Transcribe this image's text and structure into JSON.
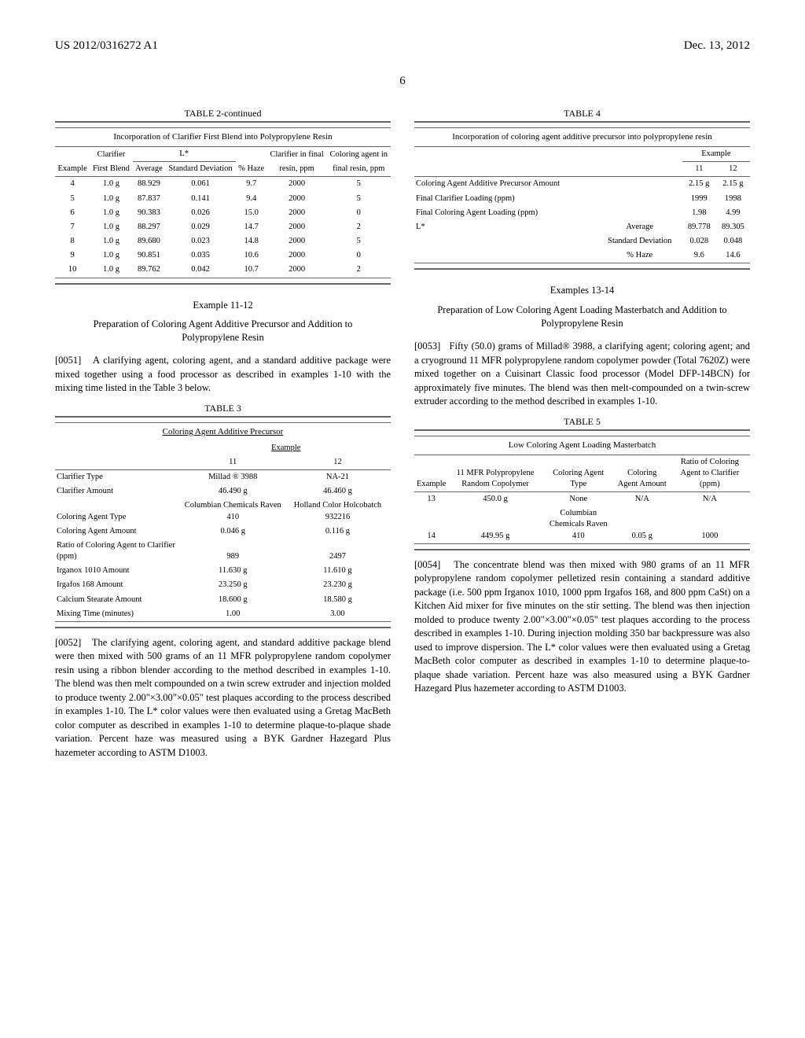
{
  "header": {
    "left": "US 2012/0316272 A1",
    "right": "Dec. 13, 2012"
  },
  "page_number": "6",
  "left": {
    "table2": {
      "caption": "TABLE 2-continued",
      "subtitle": "Incorporation of Clarifier First Blend into Polypropylene Resin",
      "head_top": {
        "clarifier": "Clarifier",
        "lstar": "L*",
        "clar_final": "Clarifier in final",
        "color_final": "Coloring agent in"
      },
      "head_bot": {
        "example": "Example",
        "first_blend": "First Blend",
        "average": "Average",
        "stddev": "Standard Deviation",
        "haze": "% Haze",
        "resin": "resin, ppm",
        "final_resin": "final resin, ppm"
      },
      "rows": [
        {
          "ex": "4",
          "fb": "1.0 g",
          "avg": "88.929",
          "sd": "0.061",
          "haze": "9.7",
          "resin": "2000",
          "final": "5"
        },
        {
          "ex": "5",
          "fb": "1.0 g",
          "avg": "87.837",
          "sd": "0.141",
          "haze": "9.4",
          "resin": "2000",
          "final": "5"
        },
        {
          "ex": "6",
          "fb": "1.0 g",
          "avg": "90.383",
          "sd": "0.026",
          "haze": "15.0",
          "resin": "2000",
          "final": "0"
        },
        {
          "ex": "7",
          "fb": "1.0 g",
          "avg": "88.297",
          "sd": "0.029",
          "haze": "14.7",
          "resin": "2000",
          "final": "2"
        },
        {
          "ex": "8",
          "fb": "1.0 g",
          "avg": "89.680",
          "sd": "0.023",
          "haze": "14.8",
          "resin": "2000",
          "final": "5"
        },
        {
          "ex": "9",
          "fb": "1.0 g",
          "avg": "90.851",
          "sd": "0.035",
          "haze": "10.6",
          "resin": "2000",
          "final": "0"
        },
        {
          "ex": "10",
          "fb": "1.0 g",
          "avg": "89.762",
          "sd": "0.042",
          "haze": "10.7",
          "resin": "2000",
          "final": "2"
        }
      ]
    },
    "example_11_12": {
      "title": "Example 11-12",
      "subtitle": "Preparation of Coloring Agent Additive Precursor and Addition to Polypropylene Resin",
      "p51_num": "[0051]",
      "p51": "A clarifying agent, coloring agent, and a standard additive package were mixed together using a food processor as described in examples 1-10 with the mixing time listed in the Table 3 below."
    },
    "table3": {
      "caption": "TABLE 3",
      "subtitle": "Coloring Agent Additive Precursor",
      "example_label": "Example",
      "c11": "11",
      "c12": "12",
      "rows": [
        {
          "label": "Clarifier Type",
          "v11": "Millad ® 3988",
          "v12": "NA-21"
        },
        {
          "label": "Clarifier Amount",
          "v11": "46.490 g",
          "v12": "46.460 g"
        },
        {
          "label": "Coloring Agent Type",
          "v11": "Columbian Chemicals Raven 410",
          "v12": "Holland Color Holcobatch 932216"
        },
        {
          "label": "Coloring Agent Amount",
          "v11": "0.046 g",
          "v12": "0.116 g"
        },
        {
          "label": "Ratio of Coloring Agent to Clarifier (ppm)",
          "v11": "989",
          "v12": "2497"
        },
        {
          "label": "Irganox 1010 Amount",
          "v11": "11.630 g",
          "v12": "11.610 g"
        },
        {
          "label": "Irgafos 168 Amount",
          "v11": "23.250 g",
          "v12": "23.230 g"
        },
        {
          "label": "Calcium Stearate Amount",
          "v11": "18.600 g",
          "v12": "18.580 g"
        },
        {
          "label": "Mixing Time (minutes)",
          "v11": "1.00",
          "v12": "3.00"
        }
      ]
    },
    "p52_num": "[0052]",
    "p52": "The clarifying agent, coloring agent, and standard additive package blend were then mixed with 500 grams of an 11 MFR polypropylene random copolymer resin using a ribbon blender according to the method described in examples 1-10. The blend was then melt compounded on a twin screw extruder and injection molded to produce twenty 2.00\"×3.00\"×0.05\" test plaques according to the process described in examples 1-10. The L* color values were then evaluated using a Gretag MacBeth color computer as described in examples 1-10 to determine plaque-to-plaque shade variation. Percent haze was measured using a BYK Gardner Hazegard Plus hazemeter according to ASTM D1003."
  },
  "right": {
    "table4": {
      "caption": "TABLE 4",
      "subtitle": "Incorporation of coloring agent additive precursor into polypropylene resin",
      "example_label": "Example",
      "c11": "11",
      "c12": "12",
      "rows": [
        {
          "label": "Coloring Agent Additive Precursor Amount",
          "sub": "",
          "v11": "2.15 g",
          "v12": "2.15 g"
        },
        {
          "label": "Final Clarifier Loading (ppm)",
          "sub": "",
          "v11": "1999",
          "v12": "1998"
        },
        {
          "label": "Final Coloring Agent Loading (ppm)",
          "sub": "",
          "v11": "1.98",
          "v12": "4.99"
        },
        {
          "label": "L*",
          "sub": "Average",
          "v11": "89.778",
          "v12": "89.305"
        },
        {
          "label": "",
          "sub": "Standard Deviation",
          "v11": "0.028",
          "v12": "0.048"
        },
        {
          "label": "",
          "sub": "% Haze",
          "v11": "9.6",
          "v12": "14.6"
        }
      ]
    },
    "examples_13_14": {
      "title": "Examples 13-14",
      "subtitle": "Preparation of Low Coloring Agent Loading Masterbatch and Addition to Polypropylene Resin",
      "p53_num": "[0053]",
      "p53": "Fifty (50.0) grams of Millad® 3988, a clarifying agent; coloring agent; and a cryoground 11 MFR polypropylene random copolymer powder (Total 7620Z) were mixed together on a Cuisinart Classic food processor (Model DFP-14BCN) for approximately five minutes. The blend was then melt-compounded on a twin-screw extruder according to the method described in examples 1-10."
    },
    "table5": {
      "caption": "TABLE 5",
      "subtitle": "Low Coloring Agent Loading Masterbatch",
      "head": {
        "ex": "Example",
        "pp": "11 MFR Polypropylene Random Copolymer",
        "type": "Coloring Agent Type",
        "amt": "Coloring Agent Amount",
        "ratio": "Ratio of Coloring Agent to Clarifier (ppm)"
      },
      "rows": [
        {
          "ex": "13",
          "pp": "450.0 g",
          "type": "None",
          "amt": "N/A",
          "ratio": "N/A"
        },
        {
          "ex": "14",
          "pp": "449.95 g",
          "type": "Columbian Chemicals Raven 410",
          "amt": "0.05 g",
          "ratio": "1000"
        }
      ]
    },
    "p54_num": "[0054]",
    "p54": "The concentrate blend was then mixed with 980 grams of an 11 MFR polypropylene random copolymer pelletized resin containing a standard additive package (i.e. 500 ppm Irganox 1010, 1000 ppm Irgafos 168, and 800 ppm CaSt) on a Kitchen Aid mixer for five minutes on the stir setting. The blend was then injection molded to produce twenty 2.00\"×3.00\"×0.05\" test plaques according to the process described in examples 1-10. During injection molding 350 bar backpressure was also used to improve dispersion. The L* color values were then evaluated using a Gretag MacBeth color computer as described in examples 1-10 to determine plaque-to-plaque shade variation. Percent haze was also measured using a BYK Gardner Hazegard Plus hazemeter according to ASTM D1003."
  }
}
